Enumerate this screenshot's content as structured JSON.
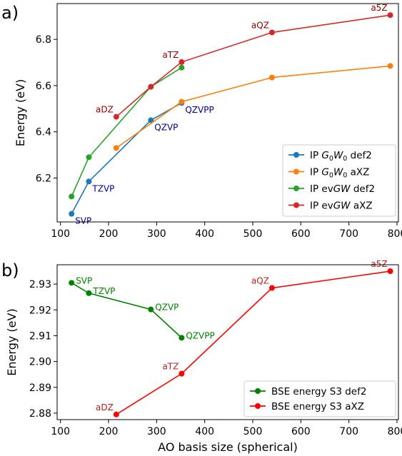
{
  "chart_data": [
    {
      "type": "line",
      "panel_label": "a)",
      "xlabel": "",
      "ylabel": "Energy (eV)",
      "xlim": [
        93,
        803
      ],
      "ylim": [
        6.01,
        6.955
      ],
      "xticks": [
        "100",
        "200",
        "300",
        "400",
        "500",
        "600",
        "700",
        "800"
      ],
      "yticks": [
        "6.2",
        "6.4",
        "6.6",
        "6.8"
      ],
      "legend_position": "lower-right",
      "series": [
        {
          "name": "IP G0W0 def2",
          "legend_parts": [
            "IP ",
            "G",
            "0",
            "W",
            "0",
            " def2"
          ],
          "color": "#1f77b4",
          "x": [
            123,
            159,
            288,
            352
          ],
          "y": [
            6.045,
            6.185,
            6.45,
            6.525
          ],
          "point_labels": [
            "SVP",
            "TZVP",
            "QZVP",
            "QZVPP"
          ],
          "label_color": "#00008b",
          "label_side": "below-right"
        },
        {
          "name": "IP G0W0 aXZ",
          "legend_parts": [
            "IP ",
            "G",
            "0",
            "W",
            "0",
            " aXZ"
          ],
          "color": "#ff7f0e",
          "x": [
            216,
            352,
            540,
            786
          ],
          "y": [
            6.33,
            6.53,
            6.635,
            6.685
          ],
          "point_labels": [],
          "label_color": "",
          "label_side": ""
        },
        {
          "name": "IP evGW def2",
          "legend_parts": [
            "IP ev",
            "GW",
            "",
            "",
            "",
            " def2"
          ],
          "color": "#2ca02c",
          "x": [
            123,
            159,
            288,
            352
          ],
          "y": [
            6.12,
            6.29,
            6.595,
            6.678
          ],
          "point_labels": [],
          "label_color": "",
          "label_side": ""
        },
        {
          "name": "IP evGW aXZ",
          "legend_parts": [
            "IP ev",
            "GW",
            "",
            "",
            "",
            " aXZ"
          ],
          "color": "#d62728",
          "x": [
            216,
            288,
            352,
            540,
            786
          ],
          "y": [
            6.465,
            6.595,
            6.702,
            6.83,
            6.905
          ],
          "point_labels": [
            "aDZ",
            "",
            "aTZ",
            "aQZ",
            "a5Z"
          ],
          "label_color": "#8b0000",
          "label_side": "above-left"
        }
      ]
    },
    {
      "type": "line",
      "panel_label": "b)",
      "xlabel": "AO basis size (spherical)",
      "ylabel": "Energy (eV)",
      "xlim": [
        93,
        803
      ],
      "ylim": [
        2.8775,
        2.9375
      ],
      "xticks": [
        "100",
        "200",
        "300",
        "400",
        "500",
        "600",
        "700",
        "800"
      ],
      "yticks": [
        "2.88",
        "2.89",
        "2.90",
        "2.91",
        "2.92",
        "2.93"
      ],
      "legend_position": "lower-right",
      "series": [
        {
          "name": "BSE energy S3 def2",
          "legend_parts": [
            "BSE energy S3 def2"
          ],
          "color": "#008000",
          "x": [
            123,
            159,
            288,
            352
          ],
          "y": [
            2.9305,
            2.9265,
            2.9202,
            2.9092
          ],
          "point_labels": [
            "SVP",
            "TZVP",
            "QZVP",
            "QZVPP"
          ],
          "label_color": "#008000",
          "label_side": "right"
        },
        {
          "name": "BSE energy S3  aXZ",
          "legend_parts": [
            "BSE energy S3  aXZ"
          ],
          "color": "#ff0000",
          "x": [
            216,
            352,
            540,
            786
          ],
          "y": [
            2.8795,
            2.8953,
            2.9285,
            2.935
          ],
          "point_labels": [
            "aDZ",
            "aTZ",
            "aQZ",
            "a5Z"
          ],
          "label_color": "#b22222",
          "label_side": "above-left"
        }
      ]
    }
  ]
}
